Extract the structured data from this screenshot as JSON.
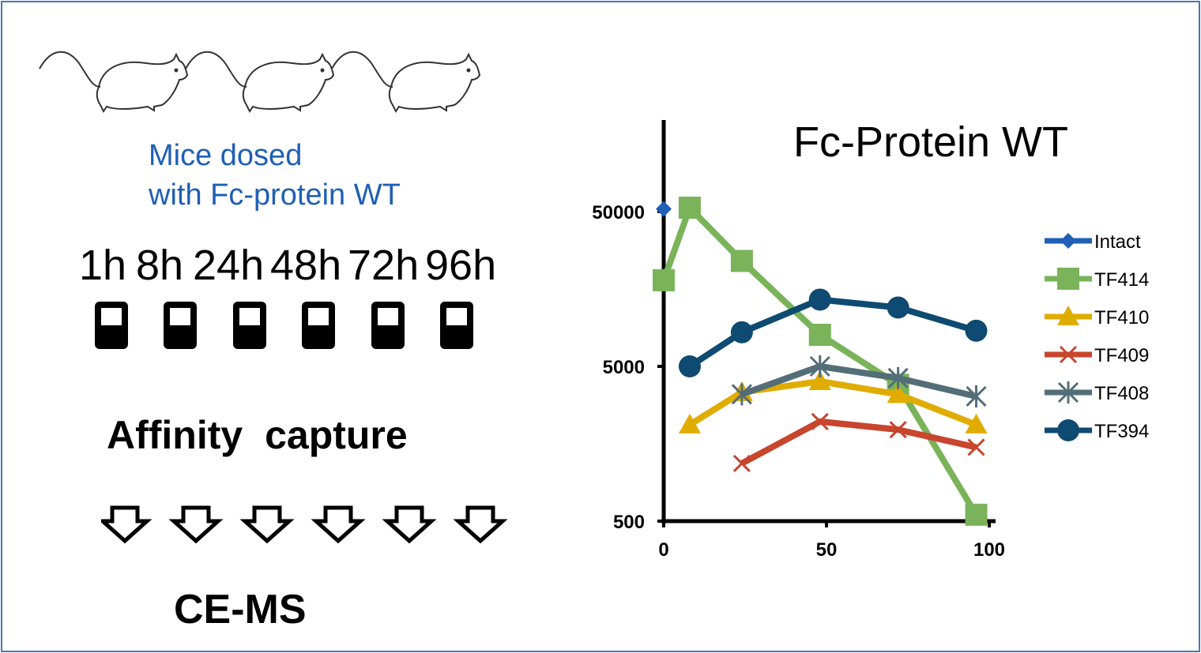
{
  "left_panel": {
    "mice_caption_line1": "Mice dosed",
    "mice_caption_line2": "with Fc-protein WT",
    "timepoints": [
      "1h",
      "8h",
      "24h",
      "48h",
      "72h",
      "96h"
    ],
    "affinity_label": "Affinity capture",
    "cems_label": "CE-MS",
    "colors": {
      "caption": "#1f5fb5",
      "frame": "#4a74b8"
    }
  },
  "chart_data": {
    "type": "line",
    "title": "Fc-Protein WT",
    "xlabel": "",
    "ylabel": "",
    "xlim": [
      0,
      100
    ],
    "ylim": [
      500,
      100000
    ],
    "yscale": "log",
    "x_ticks": [
      "0",
      "50",
      "100"
    ],
    "y_ticks": [
      "50000",
      "5000",
      "500"
    ],
    "legend_position": "right",
    "series": [
      {
        "name": "Intact",
        "color": "#1f5fb5",
        "marker": "diamond",
        "x": [
          0
        ],
        "y": [
          52000
        ]
      },
      {
        "name": "TF414",
        "color": "#7ab35a",
        "marker": "square",
        "x": [
          0,
          8,
          24,
          48,
          72,
          96
        ],
        "y": [
          18000,
          53000,
          24000,
          8000,
          3800,
          550
        ]
      },
      {
        "name": "TF410",
        "color": "#e0ac00",
        "marker": "triangle",
        "x": [
          8,
          24,
          48,
          72,
          96
        ],
        "y": [
          2100,
          3400,
          4000,
          3300,
          2100
        ]
      },
      {
        "name": "TF409",
        "color": "#c8452e",
        "marker": "x",
        "x": [
          24,
          48,
          72,
          96
        ],
        "y": [
          1180,
          2200,
          1950,
          1500
        ]
      },
      {
        "name": "TF408",
        "color": "#546e78",
        "marker": "star",
        "x": [
          24,
          48,
          72,
          96
        ],
        "y": [
          3300,
          5000,
          4200,
          3200
        ]
      },
      {
        "name": "TF394",
        "color": "#0e4a72",
        "marker": "circle",
        "x": [
          8,
          24,
          48,
          72,
          96
        ],
        "y": [
          5000,
          8300,
          13500,
          12000,
          8500
        ]
      }
    ]
  }
}
